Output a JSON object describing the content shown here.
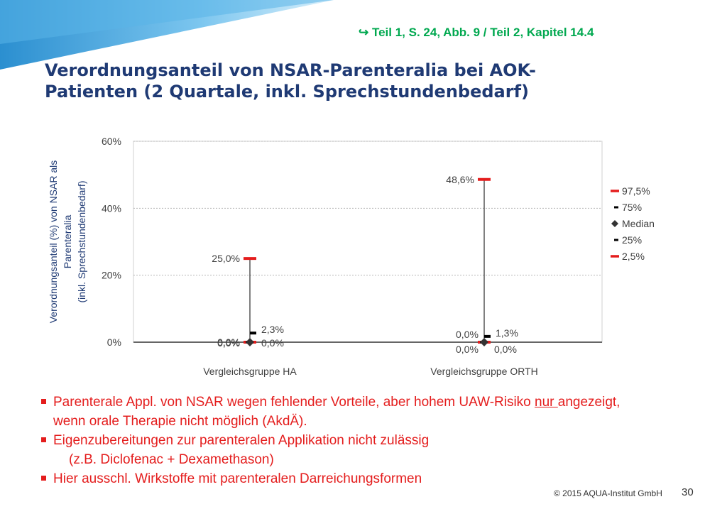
{
  "slide": {
    "reference": "Teil  1, S. 24, Abb. 9 / Teil  2, Kapitel 14.4",
    "title": "Verordnungsanteil von NSAR-Parenteralia bei AOK-Patienten (2 Quartale, inkl. Sprechstundenbedarf)",
    "footer": "© 2015 AQUA-Institut GmbH",
    "page_number": "30",
    "colors": {
      "title": "#1f3a74",
      "reference": "#00a84f",
      "bullets": "#e41d1d",
      "band": "#3ea6e0"
    }
  },
  "bullets": [
    {
      "before": "Parenterale Appl. von NSAR wegen fehlender Vorteile, aber hohem UAW-Risiko ",
      "underlined": "nur ",
      "after": "angezeigt,",
      "continuation": "wenn orale Therapie nicht möglich (AkdÄ)."
    },
    {
      "text": "Eigenzubereitungen zur parenteralen Applikation nicht zulässig",
      "continuation": "(z.B. Diclofenac + Dexamethason)"
    },
    {
      "text": "Hier ausschl. Wirkstoffe mit parenteralen Darreichungsformen"
    }
  ],
  "chart_data": {
    "type": "scatter",
    "subtype": "percentile-range",
    "ylabel": "Verordnungsanteil (%) von NSAR als Parenteralia (inkl. Sprechstundenbedarf)",
    "ylabel_lines": [
      "Verordnungsanteil (%) von NSAR als",
      "Parenteralia",
      "(inkl. Sprechstundenbedarf)"
    ],
    "ylim": [
      0,
      60
    ],
    "yticks": [
      "0%",
      "20%",
      "40%",
      "60%"
    ],
    "ytick_values": [
      0,
      20,
      40,
      60
    ],
    "grid": true,
    "legend_position": "right",
    "legend": [
      {
        "label": "97,5%",
        "marker": "bar-red"
      },
      {
        "label": "75%",
        "marker": "bar-black"
      },
      {
        "label": "Median",
        "marker": "diamond"
      },
      {
        "label": "25%",
        "marker": "bar-black"
      },
      {
        "label": "2,5%",
        "marker": "bar-red"
      }
    ],
    "categories": [
      "Vergleichsgruppe HA",
      "Vergleichsgruppe ORTH"
    ],
    "series": [
      {
        "name": "97,5%",
        "values": [
          25.0,
          48.6
        ],
        "labels": [
          "25,0%",
          "48,6%"
        ],
        "color": "#e41d1d"
      },
      {
        "name": "75%",
        "values": [
          2.3,
          1.3
        ],
        "labels": [
          "2,3%",
          "1,3%"
        ],
        "color": "#000000"
      },
      {
        "name": "Median",
        "values": [
          0.0,
          0.0
        ],
        "labels": [
          "0,0%",
          "0,0%"
        ],
        "color": "#333333"
      },
      {
        "name": "25%",
        "values": [
          0.0,
          0.0
        ],
        "labels": [
          "0,0%",
          "0,0%"
        ],
        "color": "#000000"
      },
      {
        "name": "2,5%",
        "values": [
          0.0,
          0.0
        ],
        "labels": [
          "0,0%",
          "0,0%"
        ],
        "color": "#e41d1d"
      }
    ]
  }
}
